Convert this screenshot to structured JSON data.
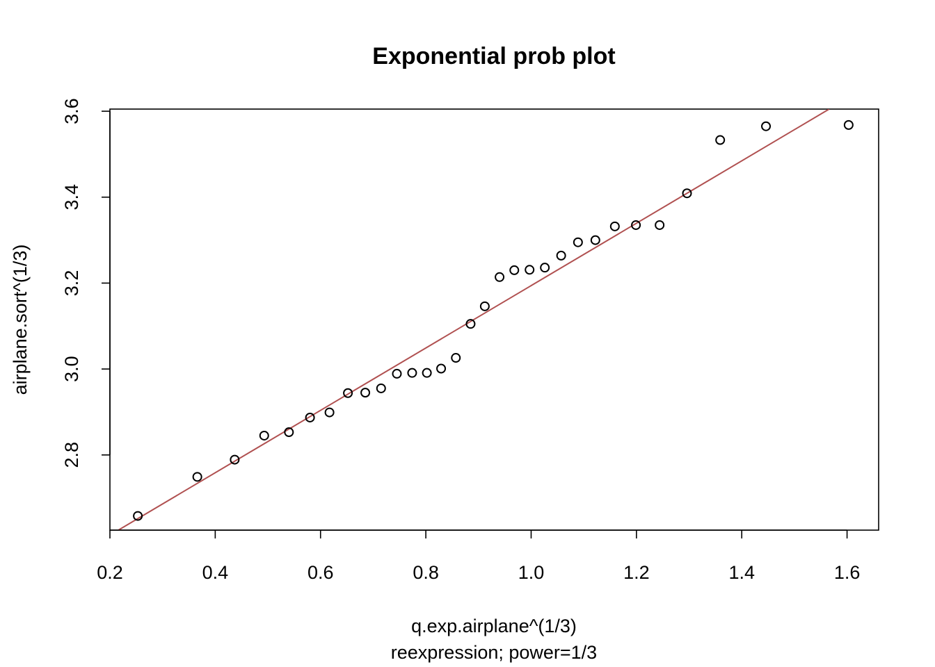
{
  "chart_data": {
    "type": "scatter",
    "title": "Exponential prob plot",
    "xlabel": "q.exp.airplane^(1/3)",
    "xlabel_sub": "reexpression; power=1/3",
    "ylabel": "airplane.sort^(1/3)",
    "xlim": [
      0.2,
      1.66
    ],
    "ylim": [
      2.625,
      3.605
    ],
    "x_ticks": [
      0.2,
      0.4,
      0.6,
      0.8,
      1.0,
      1.2,
      1.4,
      1.6
    ],
    "x_tick_labels": [
      "0.2",
      "0.4",
      "0.6",
      "0.8",
      "1.0",
      "1.2",
      "1.4",
      "1.6"
    ],
    "y_ticks": [
      2.8,
      3.0,
      3.2,
      3.4,
      3.6
    ],
    "y_tick_labels": [
      "2.8",
      "3.0",
      "3.2",
      "3.4",
      "3.6"
    ],
    "grid": false,
    "points": {
      "x": [
        0.253,
        0.366,
        0.437,
        0.493,
        0.54,
        0.58,
        0.617,
        0.652,
        0.685,
        0.715,
        0.745,
        0.774,
        0.802,
        0.829,
        0.857,
        0.885,
        0.912,
        0.94,
        0.968,
        0.997,
        1.026,
        1.057,
        1.089,
        1.122,
        1.159,
        1.199,
        1.244,
        1.296,
        1.359,
        1.446,
        1.603
      ],
      "y": [
        2.658,
        2.749,
        2.789,
        2.845,
        2.853,
        2.887,
        2.899,
        2.944,
        2.945,
        2.955,
        2.989,
        2.991,
        2.991,
        3.001,
        3.026,
        3.105,
        3.146,
        3.214,
        3.23,
        3.231,
        3.236,
        3.264,
        3.295,
        3.3,
        3.332,
        3.335,
        3.335,
        3.409,
        3.533,
        3.565,
        3.568
      ]
    },
    "fit_line": {
      "x": [
        0.216,
        1.566
      ],
      "y": [
        2.625,
        3.605
      ],
      "color": "#b05050"
    },
    "marker_color": "#000000"
  }
}
